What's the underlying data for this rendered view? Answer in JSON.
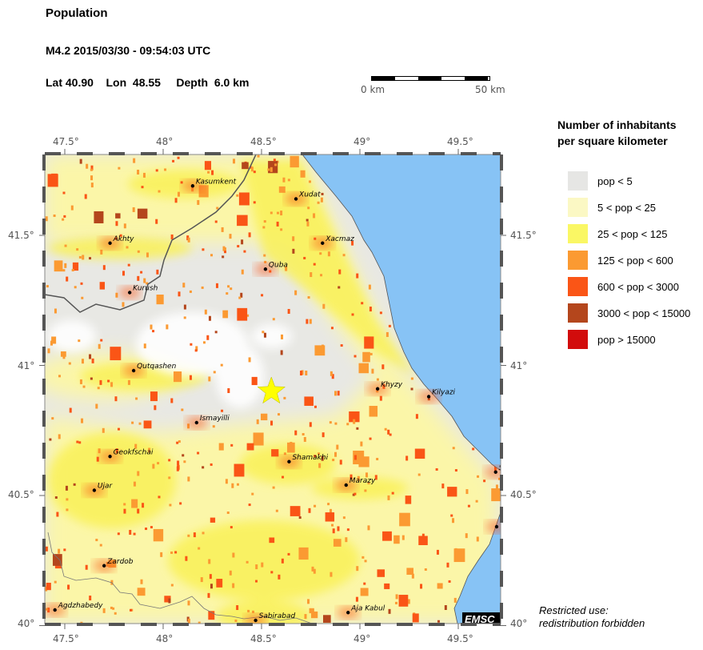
{
  "header": {
    "title": "Population",
    "event": "M4.2  2015/03/30 - 09:54:03 UTC",
    "location": "Lat 40.90    Lon  48.55     Depth  6.0 km"
  },
  "scale_bar": {
    "start_label": "0 km",
    "end_label": "50 km"
  },
  "map": {
    "lon_ticks": [
      "47.5°",
      "48°",
      "48.5°",
      "49°",
      "49.5°"
    ],
    "lat_ticks": [
      "41.5°",
      "41°",
      "40.5°",
      "40°"
    ],
    "epicenter": {
      "lat": 40.9,
      "lon": 48.55,
      "color": "#ffff00"
    },
    "sea_color": "#87c3f5",
    "cities": [
      {
        "name": "Kasumkent",
        "lon": 48.15,
        "lat": 41.69
      },
      {
        "name": "Xudat",
        "lon": 48.675,
        "lat": 41.64
      },
      {
        "name": "Akhty",
        "lon": 47.73,
        "lat": 41.47
      },
      {
        "name": "Xacmaz",
        "lon": 48.81,
        "lat": 41.47
      },
      {
        "name": "Quba",
        "lon": 48.52,
        "lat": 41.37
      },
      {
        "name": "Kurush",
        "lon": 47.83,
        "lat": 41.28
      },
      {
        "name": "Qutqashen",
        "lon": 47.85,
        "lat": 40.98
      },
      {
        "name": "Khyzy",
        "lon": 49.09,
        "lat": 40.91
      },
      {
        "name": "Kilyazi",
        "lon": 49.35,
        "lat": 40.88
      },
      {
        "name": "Ismayilli",
        "lon": 48.17,
        "lat": 40.78
      },
      {
        "name": "Geokfschai",
        "lon": 47.73,
        "lat": 40.65
      },
      {
        "name": "Shamakhi",
        "lon": 48.64,
        "lat": 40.63
      },
      {
        "name": "Marazy",
        "lon": 48.93,
        "lat": 40.54
      },
      {
        "name": "Ujar",
        "lon": 47.65,
        "lat": 40.52
      },
      {
        "name": "S",
        "lon": 49.69,
        "lat": 40.59
      },
      {
        "name": "",
        "lon": 49.695,
        "lat": 40.38
      },
      {
        "name": "Zardob",
        "lon": 47.7,
        "lat": 40.23
      },
      {
        "name": "Agdzhabedy",
        "lon": 47.45,
        "lat": 40.06
      },
      {
        "name": "Sabirabad",
        "lon": 48.47,
        "lat": 40.02
      },
      {
        "name": "Aja Kabul",
        "lon": 48.94,
        "lat": 40.05
      }
    ],
    "logo": "EMSC"
  },
  "legend": {
    "title_line1": "Number of inhabitants",
    "title_line2": "per square kilometer",
    "items": [
      {
        "label": "pop < 5",
        "color": "#e6e6e4"
      },
      {
        "label": "5 < pop < 25",
        "color": "#fbf8c4"
      },
      {
        "label": "25 < pop < 125",
        "color": "#faf764"
      },
      {
        "label": "125 < pop < 600",
        "color": "#fb9a32"
      },
      {
        "label": "600 < pop < 3000",
        "color": "#fa5516"
      },
      {
        "label": "3000 < pop < 15000",
        "color": "#b4461c"
      },
      {
        "label": "pop > 15000",
        "color": "#d20c0c"
      }
    ]
  },
  "note": {
    "line1": "Restricted use:",
    "line2": "redistribution forbidden"
  }
}
